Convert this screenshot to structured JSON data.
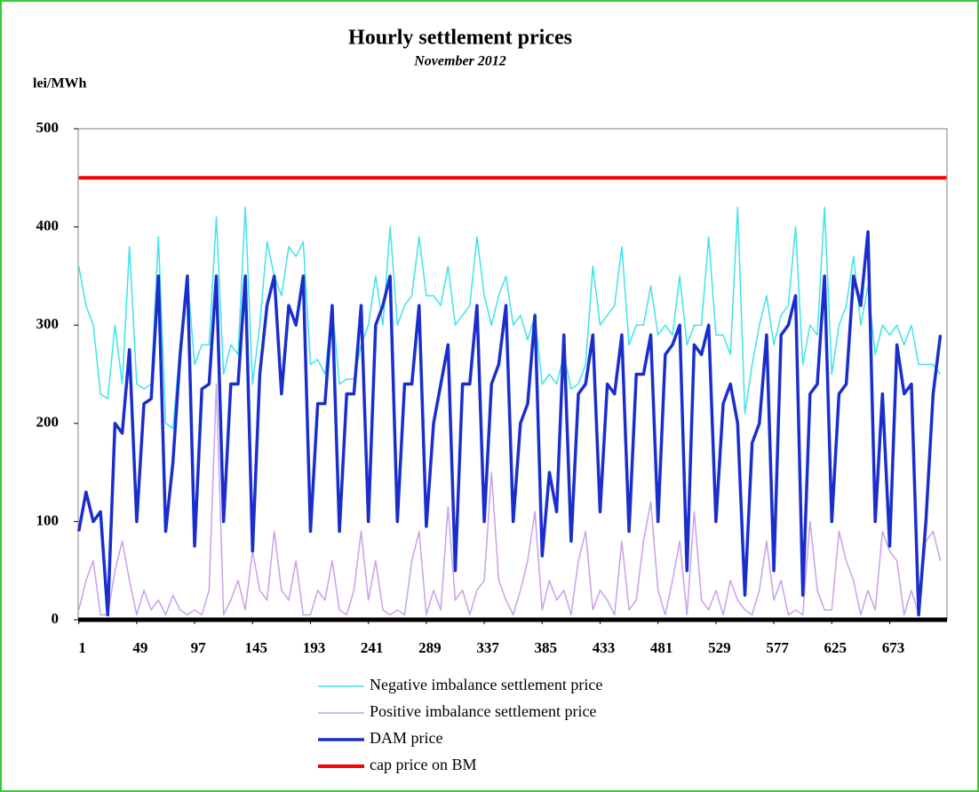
{
  "chart_data": {
    "type": "line",
    "title": "Hourly settlement prices",
    "subtitle": "November 2012",
    "y_label": "lei/MWh",
    "x": [
      1,
      7,
      13,
      19,
      25,
      31,
      37,
      43,
      49,
      55,
      61,
      67,
      73,
      79,
      85,
      91,
      97,
      103,
      109,
      115,
      121,
      127,
      133,
      139,
      145,
      151,
      157,
      163,
      169,
      175,
      181,
      187,
      193,
      199,
      205,
      211,
      217,
      223,
      229,
      235,
      241,
      247,
      253,
      259,
      265,
      271,
      277,
      283,
      289,
      295,
      301,
      307,
      313,
      319,
      325,
      331,
      337,
      343,
      349,
      355,
      361,
      367,
      373,
      379,
      385,
      391,
      397,
      403,
      409,
      415,
      421,
      427,
      433,
      439,
      445,
      451,
      457,
      463,
      469,
      475,
      481,
      487,
      493,
      499,
      505,
      511,
      517,
      523,
      529,
      535,
      541,
      547,
      553,
      559,
      565,
      571,
      577,
      583,
      589,
      595,
      601,
      607,
      613,
      619,
      625,
      631,
      637,
      643,
      649,
      655,
      661,
      667,
      673,
      679,
      685,
      691,
      697,
      703,
      709,
      715
    ],
    "xlim": [
      0.5,
      720.5
    ],
    "xticks": [
      1,
      49,
      97,
      145,
      193,
      241,
      289,
      337,
      385,
      433,
      481,
      529,
      577,
      625,
      673
    ],
    "ylim": [
      0,
      500
    ],
    "yticks": [
      0,
      100,
      200,
      300,
      400,
      500
    ],
    "series": [
      {
        "name": "Negative imbalance  settlement price",
        "color": "#3fe3ea",
        "width": 1.5,
        "values": [
          360,
          320,
          300,
          230,
          225,
          300,
          240,
          380,
          240,
          235,
          240,
          390,
          200,
          195,
          280,
          350,
          260,
          280,
          280,
          410,
          250,
          280,
          270,
          420,
          240,
          300,
          385,
          350,
          330,
          380,
          370,
          385,
          260,
          265,
          250,
          320,
          240,
          245,
          245,
          280,
          300,
          350,
          300,
          400,
          300,
          320,
          330,
          390,
          330,
          330,
          320,
          360,
          300,
          310,
          320,
          390,
          330,
          300,
          330,
          350,
          300,
          310,
          285,
          310,
          240,
          250,
          240,
          270,
          235,
          240,
          260,
          360,
          300,
          310,
          320,
          380,
          280,
          300,
          300,
          340,
          290,
          300,
          290,
          350,
          280,
          300,
          300,
          390,
          290,
          290,
          270,
          420,
          210,
          260,
          300,
          330,
          280,
          310,
          320,
          400,
          260,
          300,
          290,
          420,
          250,
          300,
          320,
          370,
          300,
          340,
          270,
          300,
          290,
          300,
          280,
          300,
          260,
          260,
          260,
          250
        ]
      },
      {
        "name": "Positive imbalance  settlement price",
        "color": "#c9a0ea",
        "width": 1.5,
        "values": [
          10,
          40,
          60,
          5,
          5,
          50,
          80,
          40,
          5,
          30,
          10,
          20,
          5,
          25,
          10,
          5,
          10,
          5,
          30,
          240,
          5,
          20,
          40,
          10,
          70,
          30,
          20,
          90,
          30,
          20,
          60,
          5,
          5,
          30,
          20,
          60,
          10,
          5,
          30,
          90,
          20,
          60,
          10,
          5,
          10,
          5,
          60,
          90,
          5,
          30,
          10,
          115,
          20,
          30,
          5,
          30,
          40,
          150,
          40,
          20,
          5,
          30,
          60,
          110,
          10,
          40,
          20,
          30,
          5,
          60,
          90,
          10,
          30,
          20,
          5,
          80,
          10,
          20,
          80,
          120,
          30,
          5,
          40,
          80,
          5,
          110,
          20,
          10,
          30,
          5,
          40,
          20,
          10,
          5,
          30,
          80,
          20,
          40,
          5,
          10,
          5,
          100,
          30,
          10,
          10,
          90,
          60,
          40,
          5,
          30,
          10,
          90,
          70,
          60,
          5,
          30,
          5,
          80,
          90,
          60
        ]
      },
      {
        "name": "DAM price",
        "color": "#1a2ecc",
        "width": 3.5,
        "values": [
          90,
          130,
          100,
          110,
          5,
          200,
          190,
          275,
          100,
          220,
          225,
          350,
          90,
          160,
          270,
          350,
          75,
          235,
          240,
          350,
          100,
          240,
          240,
          350,
          70,
          250,
          320,
          350,
          230,
          320,
          300,
          350,
          90,
          220,
          220,
          320,
          90,
          230,
          230,
          320,
          100,
          300,
          320,
          350,
          100,
          240,
          240,
          320,
          95,
          200,
          240,
          280,
          50,
          240,
          240,
          320,
          100,
          240,
          260,
          320,
          100,
          200,
          220,
          310,
          65,
          150,
          110,
          290,
          80,
          230,
          240,
          290,
          110,
          240,
          230,
          290,
          90,
          250,
          250,
          290,
          100,
          270,
          280,
          300,
          50,
          280,
          270,
          300,
          100,
          220,
          240,
          200,
          25,
          180,
          200,
          290,
          50,
          290,
          300,
          330,
          25,
          230,
          240,
          350,
          100,
          230,
          240,
          350,
          320,
          395,
          100,
          230,
          75,
          280,
          230,
          240,
          5,
          100,
          230,
          290
        ]
      },
      {
        "name": "cap price on BM",
        "color": "#ff0000",
        "width": 4,
        "x": [
          1,
          720
        ],
        "values": [
          450,
          450
        ]
      }
    ]
  }
}
